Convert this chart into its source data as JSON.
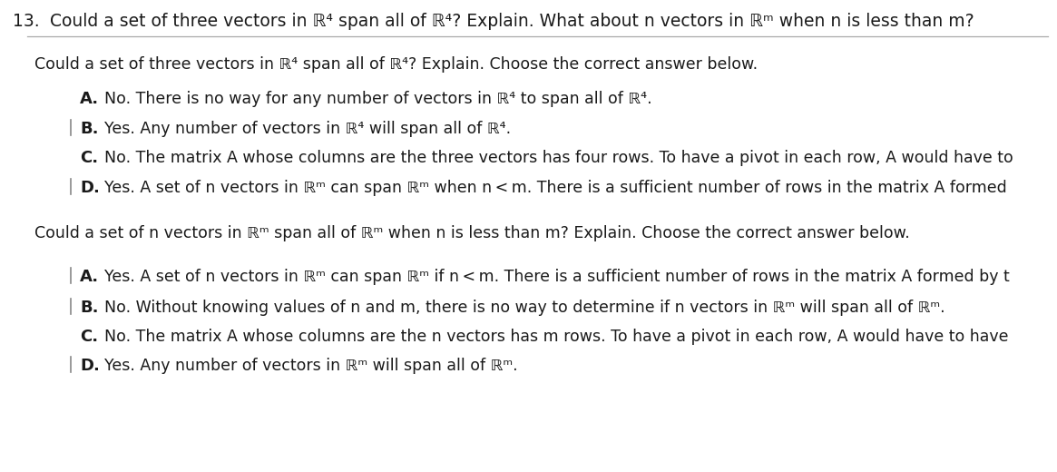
{
  "background_color": "#ffffff",
  "fig_width": 11.65,
  "fig_height": 5.2,
  "question_number": "13.",
  "header_text": "Could a set of three vectors in ℝ⁴ span all of ℝ⁴? Explain. What about n vectors in ℝᵐ when n is less than m?",
  "section1_prompt": "Could a set of three vectors in ℝ⁴ span all of ℝ⁴? Explain. Choose the correct answer below.",
  "section1_options": [
    {
      "letter": "A.",
      "text": "No. There is no way for any number of vectors in ℝ⁴ to span all of ℝ⁴.",
      "has_bar": false
    },
    {
      "letter": "B.",
      "text": "Yes. Any number of vectors in ℝ⁴ will span all of ℝ⁴.",
      "has_bar": true
    },
    {
      "letter": "C.",
      "text": "No. The matrix A whose columns are the three vectors has four rows. To have a pivot in each row, A would have to",
      "has_bar": false
    },
    {
      "letter": "D.",
      "text": "Yes. A set of n vectors in ℝᵐ can span ℝᵐ when n < m. There is a sufficient number of rows in the matrix A formed",
      "has_bar": true
    }
  ],
  "section2_prompt": "Could a set of n vectors in ℝᵐ span all of ℝᵐ when n is less than m? Explain. Choose the correct answer below.",
  "section2_options": [
    {
      "letter": "A.",
      "text": "Yes. A set of n vectors in ℝᵐ can span ℝᵐ if n < m. There is a sufficient number of rows in the matrix A formed by t",
      "has_bar": true
    },
    {
      "letter": "B.",
      "text": "No. Without knowing values of n and m, there is no way to determine if n vectors in ℝᵐ will span all of ℝᵐ.",
      "has_bar": true
    },
    {
      "letter": "C.",
      "text": "No. The matrix A whose columns are the n vectors has m rows. To have a pivot in each row, A would have to have  ",
      "has_bar": false
    },
    {
      "letter": "D.",
      "text": "Yes. Any number of vectors in ℝᵐ will span all of ℝᵐ.",
      "has_bar": true
    }
  ],
  "font_size_header": 13.5,
  "font_size_number": 13.5,
  "font_size_body": 12.5,
  "font_size_letter": 13.0,
  "text_color": "#1a1a1a",
  "line_color": "#aaaaaa"
}
